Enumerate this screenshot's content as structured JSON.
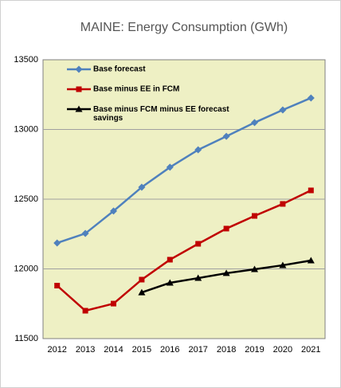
{
  "chart_data": {
    "type": "line",
    "title": "MAINE: Energy Consumption (GWh)",
    "categories": [
      "2012",
      "2013",
      "2014",
      "2015",
      "2016",
      "2017",
      "2018",
      "2019",
      "2020",
      "2021"
    ],
    "series": [
      {
        "name": "Base forecast",
        "color": "#4f81bd",
        "marker": "diamond",
        "values": [
          12186,
          12254,
          12415,
          12586,
          12729,
          12854,
          12951,
          13049,
          13140,
          13226
        ]
      },
      {
        "name": "Base minus EE in FCM",
        "color": "#c00000",
        "marker": "square",
        "values": [
          11880,
          11700,
          11751,
          11923,
          12066,
          12180,
          12289,
          12380,
          12466,
          12563
        ]
      },
      {
        "name": "Base minus FCM minus EE forecast savings",
        "color": "#000000",
        "marker": "triangle",
        "values": [
          null,
          null,
          null,
          11831,
          11900,
          11934,
          11969,
          11997,
          12026,
          12060
        ]
      }
    ],
    "ylim": [
      11500,
      13500
    ],
    "yticks": [
      11500,
      12000,
      12500,
      13000,
      13500
    ],
    "grid": true
  }
}
